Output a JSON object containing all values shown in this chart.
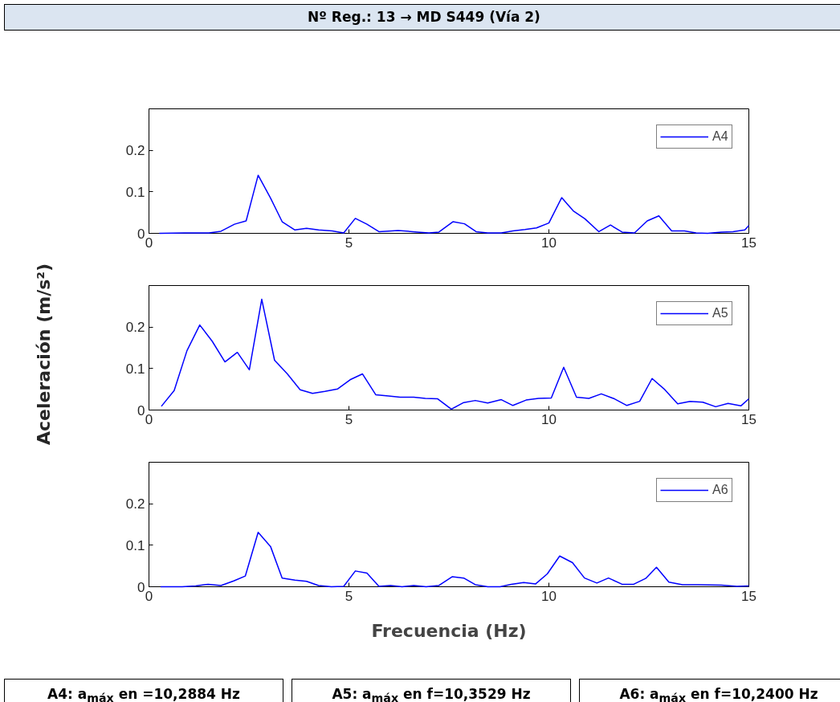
{
  "chart_data": [
    {
      "type": "line",
      "title": "Nº Reg.: 13 → MD S449 (Vía 2)",
      "xlim": [
        0,
        15
      ],
      "xticks": [
        0,
        5,
        10,
        15
      ],
      "ylim": [
        0,
        0.3
      ],
      "yticks": [
        0,
        0.1,
        0.2
      ],
      "grid": false,
      "legend": "top right",
      "marker": "none",
      "line_style": "solid",
      "series": [
        {
          "name": "A4",
          "color": "#0000ff",
          "x": [
            0.26,
            0.88,
            1.5,
            1.8,
            2.14,
            2.43,
            2.73,
            3.04,
            3.33,
            3.65,
            3.94,
            4.24,
            4.58,
            4.87,
            5.16,
            5.45,
            5.75,
            6.23,
            6.72,
            7.0,
            7.25,
            7.6,
            7.89,
            8.18,
            8.47,
            8.81,
            9.1,
            9.4,
            9.69,
            10.0,
            10.32,
            10.61,
            10.9,
            11.25,
            11.54,
            11.83,
            12.14,
            12.46,
            12.75,
            13.07,
            13.39,
            13.68,
            13.97,
            14.31,
            14.6,
            14.9,
            15.0
          ],
          "values": [
            0,
            0.001,
            0.001,
            0.005,
            0.022,
            0.03,
            0.14,
            0.085,
            0.028,
            0.008,
            0.012,
            0.008,
            0.006,
            0.001,
            0.036,
            0.022,
            0.004,
            0.007,
            0.003,
            0.001,
            0.003,
            0.028,
            0.023,
            0.004,
            0.001,
            0.001,
            0.006,
            0.009,
            0.013,
            0.025,
            0.086,
            0.054,
            0.035,
            0.004,
            0.02,
            0.003,
            0.001,
            0.03,
            0.042,
            0.006,
            0.006,
            0.001,
            0,
            0.003,
            0.004,
            0.008,
            0.019
          ]
        }
      ]
    },
    {
      "type": "line",
      "ylabel": "Aceleración (m/s²)",
      "xlim": [
        0,
        15
      ],
      "xticks": [
        0,
        5,
        10,
        15
      ],
      "ylim": [
        0,
        0.3
      ],
      "yticks": [
        0,
        0.1,
        0.2
      ],
      "grid": false,
      "legend": "top right",
      "marker": "none",
      "line_style": "solid",
      "series": [
        {
          "name": "A5",
          "color": "#0000ff",
          "x": [
            0.31,
            0.63,
            0.95,
            1.27,
            1.58,
            1.9,
            2.21,
            2.51,
            2.82,
            3.14,
            3.46,
            3.78,
            4.09,
            4.4,
            4.72,
            5.03,
            5.34,
            5.67,
            5.99,
            6.28,
            6.62,
            6.91,
            7.22,
            7.56,
            7.87,
            8.16,
            8.47,
            8.81,
            9.1,
            9.43,
            9.74,
            10.06,
            10.37,
            10.69,
            11.0,
            11.31,
            11.64,
            11.95,
            12.27,
            12.58,
            12.9,
            13.22,
            13.53,
            13.85,
            14.17,
            14.48,
            14.8,
            15.0
          ],
          "values": [
            0.009,
            0.047,
            0.143,
            0.205,
            0.166,
            0.116,
            0.139,
            0.097,
            0.267,
            0.12,
            0.087,
            0.049,
            0.04,
            0.045,
            0.051,
            0.073,
            0.087,
            0.037,
            0.034,
            0.031,
            0.031,
            0.028,
            0.027,
            0.002,
            0.018,
            0.023,
            0.017,
            0.025,
            0.011,
            0.024,
            0.028,
            0.029,
            0.103,
            0.031,
            0.028,
            0.039,
            0.027,
            0.011,
            0.021,
            0.076,
            0.049,
            0.015,
            0.021,
            0.019,
            0.008,
            0.016,
            0.01,
            0.027
          ]
        }
      ]
    },
    {
      "type": "line",
      "xlabel": "Frecuencia (Hz)",
      "xlim": [
        0,
        15
      ],
      "xticks": [
        0,
        5,
        10,
        15
      ],
      "ylim": [
        0,
        0.3
      ],
      "yticks": [
        0,
        0.1,
        0.2
      ],
      "grid": false,
      "legend": "top right",
      "marker": "none",
      "line_style": "solid",
      "annotations": [
        "A4: a$_{máx}$ en =10,2884 Hz",
        "A5: a$_{máx}$ en f=10,3529 Hz",
        "A6: a$_{máx}$ en f=10,2400 Hz"
      ],
      "series": [
        {
          "name": "A6",
          "color": "#0000ff",
          "x": [
            0.29,
            0.83,
            1.17,
            1.48,
            1.8,
            2.12,
            2.41,
            2.73,
            3.04,
            3.33,
            3.65,
            3.94,
            4.24,
            4.56,
            4.87,
            5.16,
            5.45,
            5.75,
            6.04,
            6.33,
            6.62,
            6.93,
            7.25,
            7.58,
            7.87,
            8.16,
            8.47,
            8.78,
            9.06,
            9.37,
            9.67,
            9.96,
            10.27,
            10.59,
            10.89,
            11.2,
            11.49,
            11.83,
            12.12,
            12.42,
            12.69,
            13.0,
            13.34,
            13.73,
            14.31,
            14.7,
            15.0
          ],
          "values": [
            0,
            0,
            0.002,
            0.006,
            0.003,
            0.014,
            0.026,
            0.131,
            0.097,
            0.021,
            0.016,
            0.013,
            0.003,
            0,
            0.001,
            0.038,
            0.033,
            0.001,
            0.003,
            0,
            0.003,
            0,
            0.003,
            0.024,
            0.021,
            0.005,
            0,
            0,
            0.006,
            0.01,
            0.007,
            0.031,
            0.074,
            0.058,
            0.021,
            0.009,
            0.021,
            0.006,
            0.006,
            0.02,
            0.047,
            0.011,
            0.005,
            0.005,
            0.004,
            0.001,
            0.002
          ]
        }
      ]
    }
  ]
}
